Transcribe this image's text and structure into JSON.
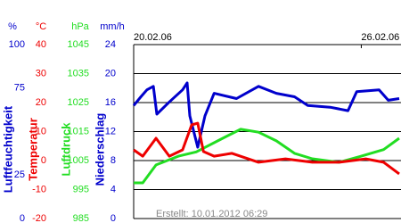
{
  "chart_data": {
    "type": "line",
    "footer": "Erstellt: 10.01.2012 06:29",
    "xlim": [
      0,
      7
    ],
    "xticks": [
      {
        "value": 0,
        "label": "20.02.06"
      },
      {
        "value": 6,
        "label": "26.02.06"
      }
    ],
    "grid": true,
    "axes": [
      {
        "unit": "%",
        "title": "Luftfeuchtigkeit",
        "color": "#0000cc",
        "lim": [
          0,
          100
        ],
        "ticks": [
          100,
          75,
          25,
          0
        ]
      },
      {
        "unit": "°C",
        "title": "Temperatur",
        "color": "#ee0000",
        "lim": [
          -20,
          40
        ],
        "ticks": [
          40,
          30,
          20,
          10,
          0,
          -10,
          -20
        ]
      },
      {
        "unit": "hPa",
        "title": "Luftdruck",
        "color": "#22dd22",
        "lim": [
          985,
          1045
        ],
        "ticks": [
          1045,
          1035,
          1025,
          1015,
          1005,
          995,
          985
        ]
      },
      {
        "unit": "mm/h",
        "title": "Niederschlag",
        "color": "#0000cc",
        "lim": [
          0,
          24
        ],
        "ticks": [
          24,
          20,
          16,
          12,
          8,
          4,
          0
        ]
      }
    ],
    "series": [
      {
        "name": "Luftfeuchtigkeit",
        "axis": 0,
        "color": "#0000cc",
        "x": [
          0,
          0.19,
          0.35,
          0.52,
          0.61,
          0.94,
          1.29,
          1.41,
          1.48,
          1.69,
          1.88,
          2.12,
          2.71,
          3.29,
          3.76,
          4.24,
          4.59,
          5.18,
          5.65,
          5.88,
          6.47,
          6.71,
          7.0
        ],
        "values": [
          65,
          70,
          74,
          76,
          60,
          67,
          74,
          78,
          59,
          41,
          59,
          72,
          69,
          76,
          72,
          70,
          65,
          64,
          62,
          73,
          74,
          68,
          69
        ]
      },
      {
        "name": "Luftdruck",
        "axis": 2,
        "color": "#22dd22",
        "x": [
          0,
          0.24,
          0.59,
          1.18,
          1.65,
          2.35,
          2.82,
          3.29,
          3.76,
          4.24,
          4.71,
          5.41,
          6.0,
          6.59,
          7.0
        ],
        "values": [
          997.3,
          997.3,
          1003.5,
          1006.5,
          1008,
          1012.7,
          1015.8,
          1014.8,
          1011.8,
          1007.5,
          1005.6,
          1004.4,
          1006.5,
          1008.8,
          1012.7
        ]
      },
      {
        "name": "Temperatur",
        "axis": 1,
        "color": "#ee0000",
        "x": [
          0,
          0.24,
          0.59,
          0.94,
          1.29,
          1.53,
          1.69,
          1.84,
          2.12,
          2.59,
          3.29,
          4.0,
          4.71,
          5.41,
          6.12,
          6.59,
          7.0
        ],
        "values": [
          3.7,
          1.5,
          7.7,
          1.5,
          3.7,
          12.3,
          12.9,
          3.1,
          1.5,
          2.5,
          -0.6,
          0.6,
          -0.6,
          -0.6,
          0.6,
          -0.6,
          -4.6
        ]
      }
    ]
  }
}
